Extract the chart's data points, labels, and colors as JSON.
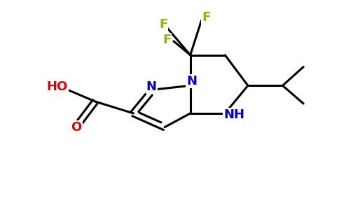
{
  "bg_color": "#ffffff",
  "bond_color": "#000000",
  "N_color": "#0000cc",
  "F_color": "#7fbf00",
  "O_color": "#dd0000",
  "bond_width": 2.2,
  "figw": 4.84,
  "figh": 3.0,
  "xlim": [
    0,
    4.84
  ],
  "ylim": [
    0,
    3.0
  ]
}
